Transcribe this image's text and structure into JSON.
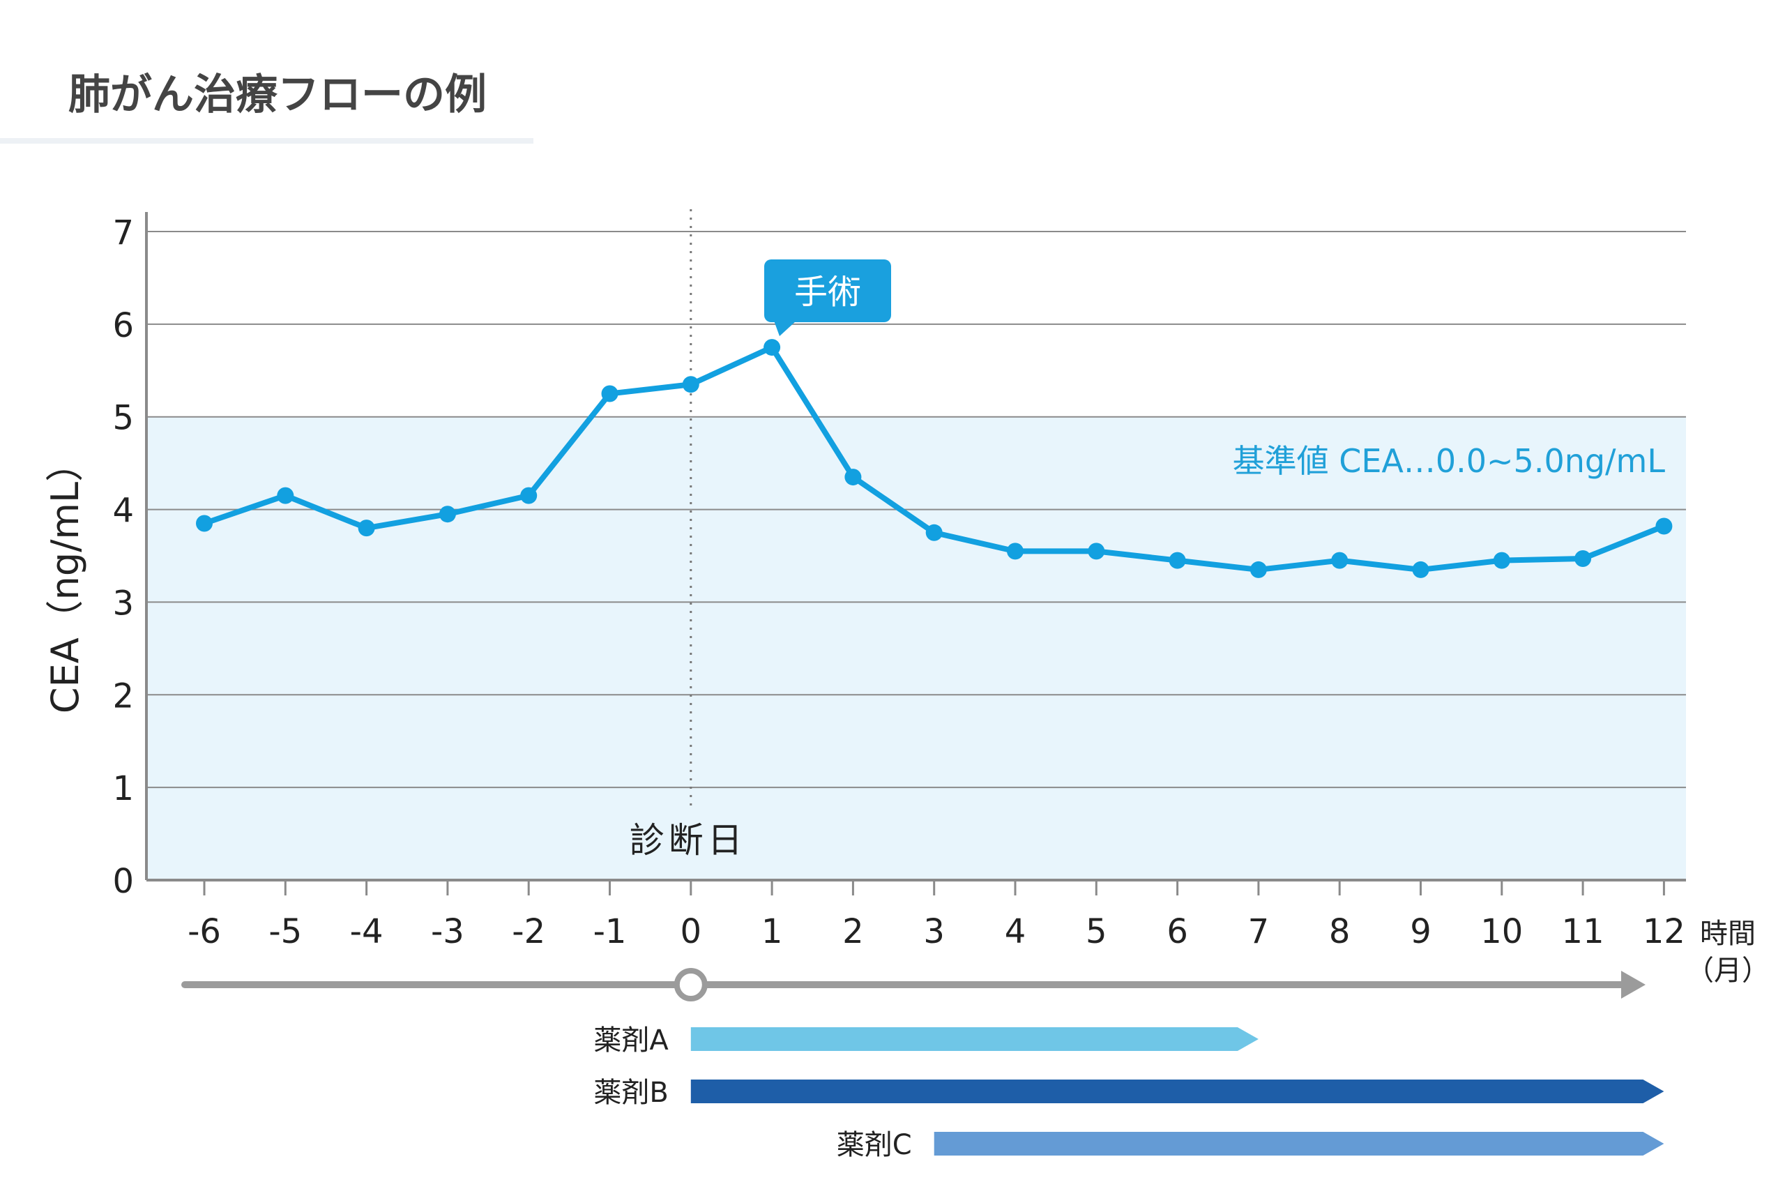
{
  "header": {
    "title": "肺がん治療フローの例"
  },
  "chart_data": {
    "type": "line",
    "title": "肺がん治療フローの例",
    "ylabel": "CEA（ng/mL）",
    "xlabel": "時間",
    "xlabel_unit": "（月）",
    "ylim": [
      0,
      7
    ],
    "xlim": [
      -6,
      12
    ],
    "yticks": [
      "0",
      "1",
      "2",
      "3",
      "4",
      "5",
      "6",
      "7"
    ],
    "xticks": [
      "-6",
      "-5",
      "-4",
      "-3",
      "-2",
      "-1",
      "0",
      "1",
      "2",
      "3",
      "4",
      "5",
      "6",
      "7",
      "8",
      "9",
      "10",
      "11",
      "12"
    ],
    "grid": true,
    "x": [
      -6,
      -5,
      -4,
      -3,
      -2,
      -1,
      0,
      1,
      2,
      3,
      4,
      5,
      6,
      7,
      8,
      9,
      10,
      11,
      12
    ],
    "series": [
      {
        "values": [
          3.85,
          4.15,
          3.8,
          3.95,
          4.15,
          5.25,
          5.35,
          5.75,
          4.35,
          3.75,
          3.55,
          3.55,
          3.45,
          3.35,
          3.45,
          3.35,
          3.45,
          3.47,
          3.82
        ]
      }
    ],
    "reference_band": {
      "range": [
        0,
        5
      ],
      "label": "基準値 CEA…0.0~5.0ng/mL"
    },
    "annotations": [
      {
        "x": 0,
        "label": "診断日",
        "type": "vline"
      },
      {
        "x": 1,
        "label": "手術",
        "type": "callout"
      }
    ],
    "timeline": {
      "start": -6,
      "end": 12,
      "marker_x": 0
    },
    "treatments": [
      {
        "label": "薬剤A",
        "start": 0,
        "end": 7,
        "color": "#6fc6e7"
      },
      {
        "label": "薬剤B",
        "start": 0,
        "end": 12,
        "color": "#1e5ea8"
      },
      {
        "label": "薬剤C",
        "start": 3,
        "end": 12,
        "color": "#649bd5"
      }
    ],
    "colors": {
      "line": "#12a0e0",
      "band": "#e8f5fc",
      "grid": "#8a8a8a",
      "axis": "#8a8a8a",
      "timeline": "#9b9b9b",
      "callout": "#1aa0de",
      "band_label": "#20a0d8",
      "text": "#222222"
    }
  }
}
